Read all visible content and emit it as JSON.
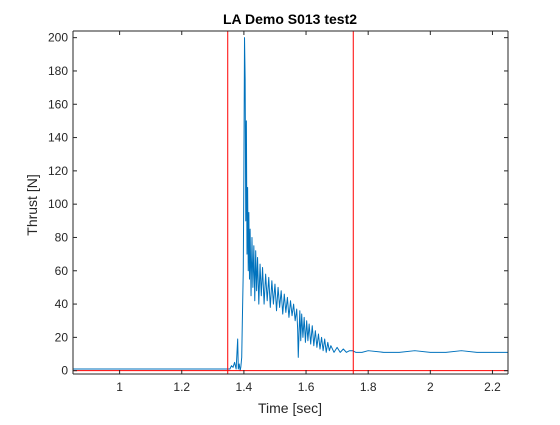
{
  "chart_data": {
    "type": "line",
    "title": "LA Demo S013 test2",
    "xlabel": "Time [sec]",
    "ylabel": "Thrust [N]",
    "xlim": [
      0.85,
      2.25
    ],
    "ylim": [
      -2,
      204
    ],
    "xticks": [
      1,
      1.2,
      1.4,
      1.6,
      1.8,
      2,
      2.2
    ],
    "xtick_labels": [
      "1",
      "1.2",
      "1.4",
      "1.6",
      "1.8",
      "2",
      "2.2"
    ],
    "yticks": [
      0,
      20,
      40,
      60,
      80,
      100,
      120,
      140,
      160,
      180,
      200
    ],
    "ytick_labels": [
      "0",
      "20",
      "40",
      "60",
      "80",
      "100",
      "120",
      "140",
      "160",
      "180",
      "200"
    ],
    "grid": false,
    "vertical_markers": [
      {
        "x": 1.348,
        "color": "#ff0000"
      },
      {
        "x": 1.752,
        "color": "#ff0000"
      }
    ],
    "baseline_marker": {
      "y": 0,
      "color": "#ff0000"
    },
    "series": [
      {
        "color": "#0072bd",
        "x": [
          0.85,
          0.95,
          1.05,
          1.15,
          1.25,
          1.33,
          1.355,
          1.36,
          1.365,
          1.37,
          1.375,
          1.38,
          1.382,
          1.385,
          1.388,
          1.39,
          1.393,
          1.395,
          1.398,
          1.4,
          1.402,
          1.404,
          1.406,
          1.408,
          1.41,
          1.412,
          1.414,
          1.416,
          1.418,
          1.42,
          1.423,
          1.426,
          1.429,
          1.432,
          1.435,
          1.438,
          1.441,
          1.444,
          1.448,
          1.452,
          1.456,
          1.46,
          1.465,
          1.47,
          1.475,
          1.48,
          1.485,
          1.49,
          1.495,
          1.5,
          1.505,
          1.51,
          1.515,
          1.52,
          1.525,
          1.53,
          1.535,
          1.54,
          1.545,
          1.55,
          1.555,
          1.56,
          1.565,
          1.57,
          1.573,
          1.575,
          1.577,
          1.58,
          1.583,
          1.586,
          1.59,
          1.594,
          1.598,
          1.602,
          1.606,
          1.61,
          1.615,
          1.62,
          1.625,
          1.63,
          1.635,
          1.64,
          1.645,
          1.65,
          1.655,
          1.66,
          1.665,
          1.67,
          1.675,
          1.68,
          1.69,
          1.7,
          1.71,
          1.72,
          1.73,
          1.74,
          1.75,
          1.76,
          1.78,
          1.8,
          1.85,
          1.9,
          1.95,
          2.0,
          2.05,
          2.1,
          2.15,
          2.2,
          2.25
        ],
        "y": [
          1,
          1,
          1,
          1,
          1,
          1,
          1,
          3,
          2,
          5,
          1,
          19,
          1,
          4,
          0,
          2,
          8,
          30,
          60,
          120,
          200,
          175,
          90,
          150,
          70,
          110,
          60,
          95,
          55,
          85,
          45,
          80,
          50,
          75,
          42,
          72,
          48,
          68,
          40,
          64,
          45,
          62,
          40,
          58,
          42,
          56,
          38,
          54,
          40,
          52,
          36,
          50,
          38,
          48,
          34,
          46,
          35,
          44,
          32,
          42,
          33,
          40,
          30,
          37,
          25,
          8,
          20,
          36,
          18,
          34,
          20,
          32,
          17,
          30,
          18,
          28,
          16,
          27,
          15,
          24,
          14,
          22,
          13,
          20,
          12,
          19,
          11,
          17,
          12,
          15,
          11,
          14,
          11,
          13,
          11,
          12,
          12,
          11,
          11,
          12,
          11,
          11,
          12,
          11,
          11,
          12,
          11,
          11,
          11
        ]
      }
    ]
  }
}
